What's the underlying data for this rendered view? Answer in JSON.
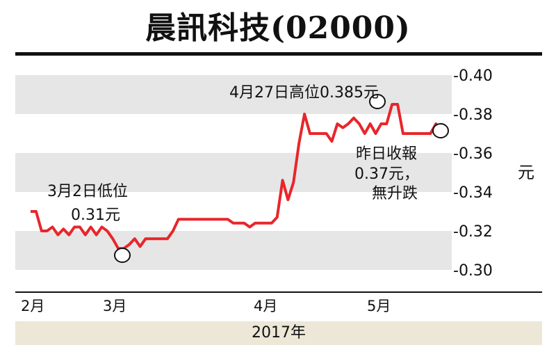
{
  "chart_data": {
    "type": "line",
    "title": "晨訊科技(02000)",
    "ylabel": "元",
    "ylim": [
      0.3,
      0.4
    ],
    "yticks": [
      "-0.40",
      "-0.38",
      "-0.36",
      "-0.34",
      "-0.32",
      "-0.30"
    ],
    "xlabel": "2017年",
    "month_labels": [
      "2月",
      "3月",
      "4月",
      "5月"
    ],
    "line_color": "#e8262a",
    "values": [
      0.33,
      0.33,
      0.32,
      0.32,
      0.322,
      0.318,
      0.321,
      0.318,
      0.322,
      0.322,
      0.318,
      0.322,
      0.318,
      0.322,
      0.32,
      0.316,
      0.311,
      0.311,
      0.313,
      0.316,
      0.312,
      0.316,
      0.316,
      0.316,
      0.316,
      0.316,
      0.32,
      0.326,
      0.326,
      0.326,
      0.326,
      0.326,
      0.326,
      0.326,
      0.326,
      0.326,
      0.326,
      0.324,
      0.324,
      0.324,
      0.322,
      0.324,
      0.324,
      0.324,
      0.324,
      0.327,
      0.346,
      0.336,
      0.345,
      0.365,
      0.38,
      0.37,
      0.37,
      0.37,
      0.37,
      0.366,
      0.375,
      0.373,
      0.375,
      0.378,
      0.375,
      0.37,
      0.375,
      0.37,
      0.375,
      0.375,
      0.385,
      0.385,
      0.37,
      0.37,
      0.37,
      0.37,
      0.37,
      0.37,
      0.375,
      0.37,
      0.37
    ],
    "annotations": [
      {
        "lines": [
          "4月27日高位0.385元"
        ],
        "value": 0.385,
        "label": "high"
      },
      {
        "lines": [
          "3月2日低位",
          "0.31元"
        ],
        "value": 0.31,
        "label": "low"
      },
      {
        "lines": [
          "昨日收報",
          "0.37元，",
          "無升跌"
        ],
        "value": 0.37,
        "label": "last"
      }
    ],
    "grid_bands": true
  }
}
